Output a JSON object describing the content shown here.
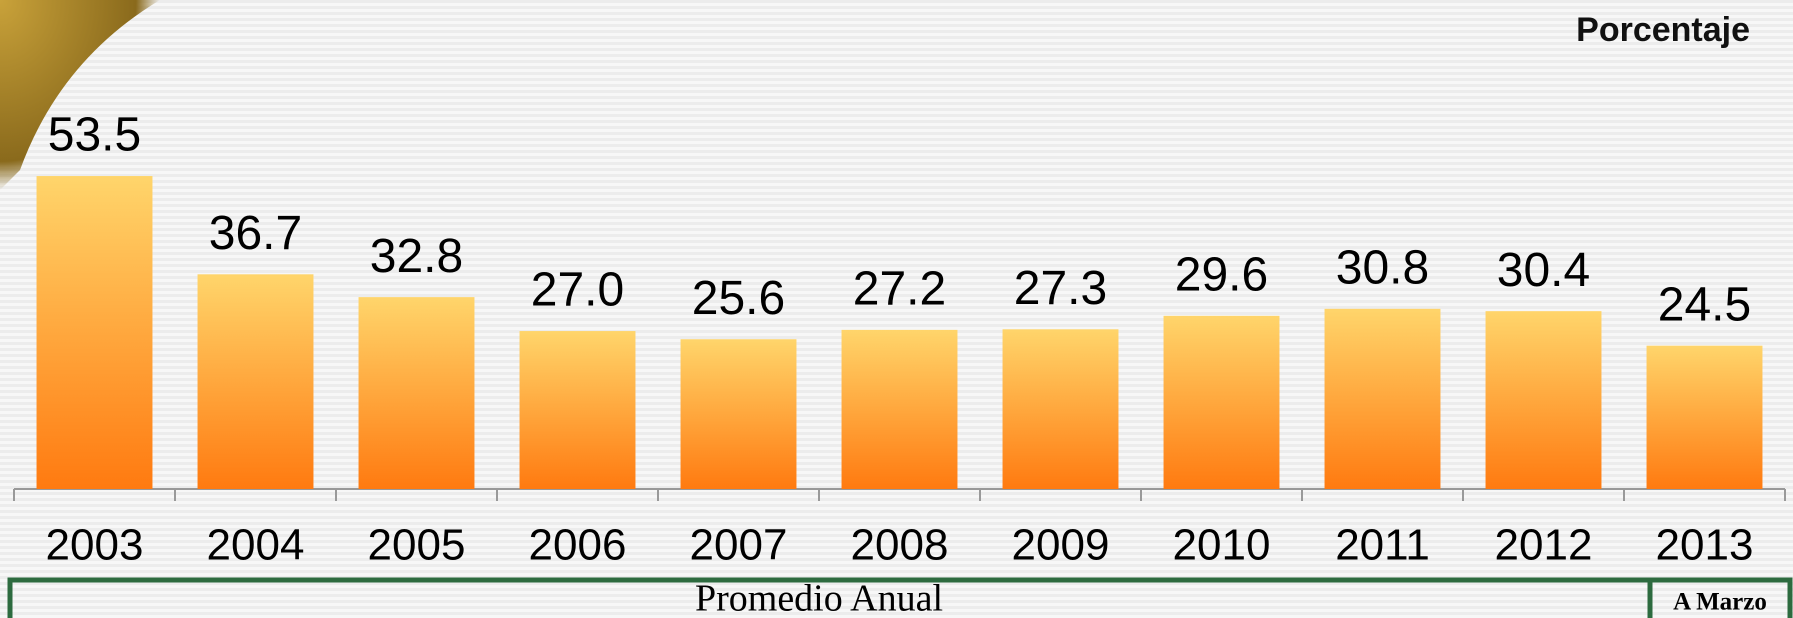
{
  "chart_data": {
    "type": "bar",
    "unit_label": "Porcentaje",
    "categories": [
      "2003",
      "2004",
      "2005",
      "2006",
      "2007",
      "2008",
      "2009",
      "2010",
      "2011",
      "2012",
      "2013"
    ],
    "values": [
      53.5,
      36.7,
      32.8,
      27.0,
      25.6,
      27.2,
      27.3,
      29.6,
      30.8,
      30.4,
      24.5
    ],
    "value_labels": [
      "53.5",
      "36.7",
      "32.8",
      "27.0",
      "25.6",
      "27.2",
      "27.3",
      "29.6",
      "30.8",
      "30.4",
      "24.5"
    ],
    "color": "#ff7a10",
    "ylim": [
      0,
      60
    ],
    "group_labels": [
      "Promedio Anual",
      "A Marzo"
    ]
  }
}
